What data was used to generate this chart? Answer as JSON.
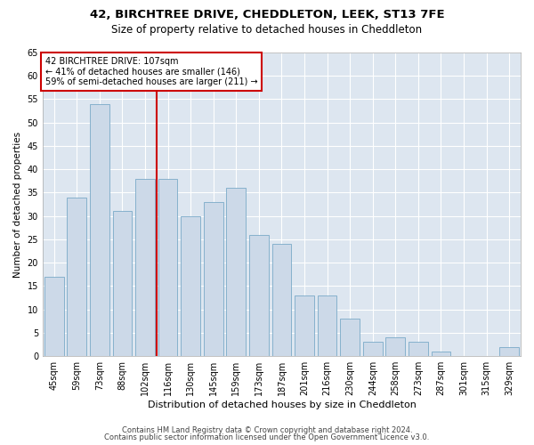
{
  "title1": "42, BIRCHTREE DRIVE, CHEDDLETON, LEEK, ST13 7FE",
  "title2": "Size of property relative to detached houses in Cheddleton",
  "xlabel": "Distribution of detached houses by size in Cheddleton",
  "ylabel": "Number of detached properties",
  "categories": [
    "45sqm",
    "59sqm",
    "73sqm",
    "88sqm",
    "102sqm",
    "116sqm",
    "130sqm",
    "145sqm",
    "159sqm",
    "173sqm",
    "187sqm",
    "201sqm",
    "216sqm",
    "230sqm",
    "244sqm",
    "258sqm",
    "273sqm",
    "287sqm",
    "301sqm",
    "315sqm",
    "329sqm"
  ],
  "values": [
    17,
    34,
    54,
    31,
    38,
    38,
    30,
    33,
    36,
    26,
    24,
    13,
    13,
    8,
    3,
    4,
    3,
    1,
    0,
    0,
    2
  ],
  "bar_color": "#ccd9e8",
  "bar_edge_color": "#7aaac8",
  "vline_x": 4.5,
  "vline_color": "#cc0000",
  "annotation_text": "42 BIRCHTREE DRIVE: 107sqm\n← 41% of detached houses are smaller (146)\n59% of semi-detached houses are larger (211) →",
  "annotation_box_color": "#ffffff",
  "annotation_box_edge": "#cc0000",
  "ylim": [
    0,
    65
  ],
  "yticks": [
    0,
    5,
    10,
    15,
    20,
    25,
    30,
    35,
    40,
    45,
    50,
    55,
    60,
    65
  ],
  "background_color": "#dde6f0",
  "footer1": "Contains HM Land Registry data © Crown copyright and database right 2024.",
  "footer2": "Contains public sector information licensed under the Open Government Licence v3.0.",
  "title1_fontsize": 9.5,
  "title2_fontsize": 8.5,
  "xlabel_fontsize": 8,
  "ylabel_fontsize": 7.5,
  "tick_fontsize": 7,
  "annot_fontsize": 7,
  "footer_fontsize": 6
}
